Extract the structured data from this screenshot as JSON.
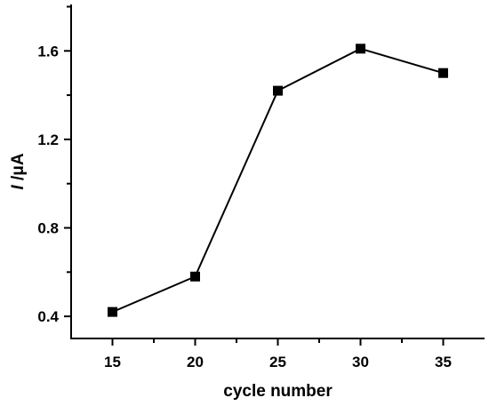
{
  "chart_data": {
    "type": "line",
    "title": "",
    "xlabel": "cycle number",
    "ylabel": {
      "italic": "I",
      "rest": " /μA"
    },
    "x": [
      15,
      20,
      25,
      30,
      35
    ],
    "series": [
      {
        "values": [
          0.42,
          0.58,
          1.42,
          1.61,
          1.5
        ]
      }
    ],
    "xlim": [
      12.5,
      37.5
    ],
    "ylim": [
      0.3,
      1.81
    ],
    "xticks": [
      15,
      20,
      25,
      30,
      35
    ],
    "xtick_labels": [
      "15",
      "20",
      "25",
      "30",
      "35"
    ],
    "yticks": [
      0.4,
      0.8,
      1.2,
      1.6
    ],
    "ytick_labels": [
      "0.4",
      "0.8",
      "1.2",
      "1.6"
    ],
    "grid": false,
    "legend": "none",
    "marker": "square",
    "color": "#000000"
  }
}
